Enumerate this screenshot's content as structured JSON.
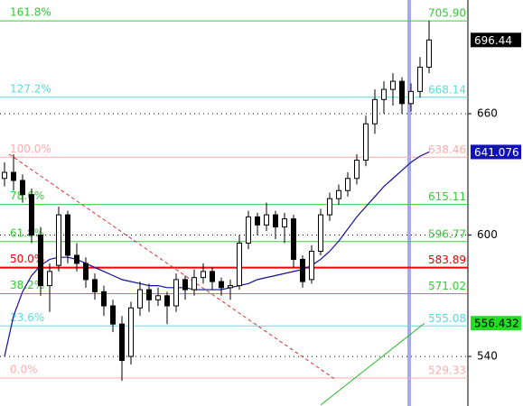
{
  "chart_data": {
    "type": "candlestick",
    "xlim": [
      -0.5,
      51.3
    ],
    "ylim": [
      515.5,
      716.2
    ],
    "yticks": [
      540,
      600,
      660
    ],
    "grid": true,
    "candles": [
      [
        628,
        636,
        624,
        631
      ],
      [
        631,
        640,
        622,
        627
      ],
      [
        627,
        630,
        616,
        620
      ],
      [
        620,
        623,
        596,
        600
      ],
      [
        600,
        604,
        570,
        575
      ],
      [
        575,
        586,
        562,
        582
      ],
      [
        585,
        614,
        582,
        610
      ],
      [
        610,
        612,
        586,
        590
      ],
      [
        590,
        596,
        582,
        586
      ],
      [
        586,
        589,
        574,
        578
      ],
      [
        578,
        581,
        568,
        572
      ],
      [
        572,
        575,
        560,
        565
      ],
      [
        565,
        568,
        552,
        556
      ],
      [
        556,
        560,
        528,
        538
      ],
      [
        540,
        567,
        536,
        564
      ],
      [
        564,
        577,
        560,
        573
      ],
      [
        573,
        576,
        562,
        568
      ],
      [
        568,
        574,
        565,
        570
      ],
      [
        570,
        572,
        556,
        565
      ],
      [
        565,
        581,
        562,
        578
      ],
      [
        578,
        580,
        568,
        573
      ],
      [
        573,
        583,
        570,
        579
      ],
      [
        579,
        586,
        576,
        582
      ],
      [
        582,
        584,
        573,
        577
      ],
      [
        577,
        579,
        570,
        574
      ],
      [
        574,
        578,
        568,
        575
      ],
      [
        575,
        600,
        573,
        596
      ],
      [
        596,
        612,
        593,
        609
      ],
      [
        609,
        611,
        600,
        605
      ],
      [
        605,
        616,
        602,
        610
      ],
      [
        610,
        612,
        598,
        604
      ],
      [
        604,
        611,
        596,
        608
      ],
      [
        608,
        610,
        584,
        588
      ],
      [
        588,
        590,
        574,
        577
      ],
      [
        578,
        595,
        576,
        592
      ],
      [
        592,
        613,
        590,
        610
      ],
      [
        610,
        621,
        607,
        618
      ],
      [
        618,
        625,
        615,
        622
      ],
      [
        622,
        631,
        619,
        628
      ],
      [
        628,
        640,
        625,
        637
      ],
      [
        637,
        659,
        634,
        655
      ],
      [
        655,
        672,
        650,
        667
      ],
      [
        667,
        676,
        660,
        672
      ],
      [
        672,
        680,
        664,
        676
      ],
      [
        676,
        678,
        660,
        665
      ],
      [
        665,
        675,
        661,
        671
      ],
      [
        671,
        688,
        668,
        683
      ],
      [
        683,
        706,
        680,
        696.44
      ]
    ],
    "ma": {
      "color": "#1010a0",
      "values": [
        540,
        560,
        572,
        580,
        585,
        588,
        589,
        589,
        588,
        586,
        584,
        582,
        580,
        578,
        577,
        576,
        575,
        575,
        574,
        574,
        574,
        573,
        573,
        573,
        573,
        574,
        575,
        576,
        578,
        579,
        580,
        581,
        582,
        583,
        585,
        588,
        592,
        597,
        603,
        609,
        614,
        619,
        624,
        628,
        632,
        636,
        639,
        641.076
      ]
    },
    "lower_line": {
      "color": "#22bb22",
      "x": [
        35,
        46.5
      ],
      "values": [
        516,
        556.432
      ]
    },
    "trend_line": {
      "color": "#e03030",
      "x": [
        0.5,
        36.5
      ],
      "values": [
        640,
        529
      ]
    },
    "fibs": [
      {
        "label": "161.8%",
        "value": 705.9,
        "value_label": "705.90",
        "color": "#33cc33"
      },
      {
        "label": "127.2%",
        "value": 668.14,
        "color": "#55dddd"
      },
      {
        "label": "100.0%",
        "value": 638.46,
        "color": "#ffaaaa"
      },
      {
        "label": "78.6%",
        "value": 615.11,
        "color": "#33cc33"
      },
      {
        "label": "61.8%",
        "value": 596.77,
        "color": "#33cc33"
      },
      {
        "label": "50.0%",
        "value": 583.89,
        "color": "#ee0000"
      },
      {
        "label": "38.2%",
        "value": 571.02,
        "color": "#33cc33"
      },
      {
        "label": "23.6%",
        "value": 555.08,
        "color": "#55dddd"
      },
      {
        "label": "0.0%",
        "value": 529.33,
        "color": "#ffaaaa"
      }
    ]
  }
}
